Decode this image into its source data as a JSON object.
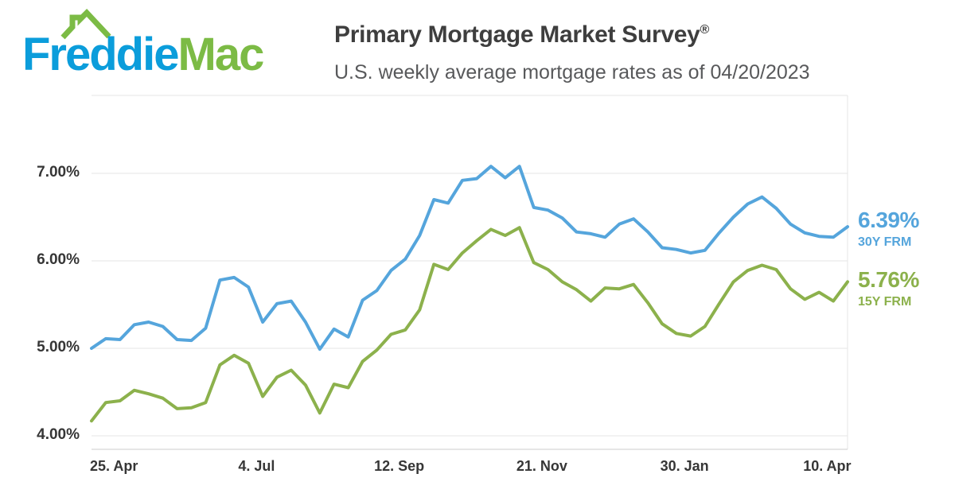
{
  "header": {
    "logo": {
      "word1": "Freddie",
      "word2": "Mac",
      "blue": "#0b9ddb",
      "green": "#7cbb45"
    },
    "title": "Primary Mortgage Market Survey",
    "registered_mark": "®",
    "subtitle": "U.S. weekly average mortgage rates as of 04/20/2023"
  },
  "chart_data": {
    "type": "line",
    "title": "Primary Mortgage Market Survey",
    "subtitle": "U.S. weekly average mortgage rates as of 04/20/2023",
    "x_interval": "weekly",
    "x_start": "2022-04-14",
    "x_end": "2023-04-20",
    "ylim": [
      3.85,
      7.9
    ],
    "grid": "horizontal",
    "legend_position": "right",
    "grid_color": "#e6e6e6",
    "axis_line_color": "#cccccc",
    "y_ticks": [
      {
        "label": "4.00%",
        "value": 4
      },
      {
        "label": "5.00%",
        "value": 5
      },
      {
        "label": "6.00%",
        "value": 6
      },
      {
        "label": "7.00%",
        "value": 7
      }
    ],
    "x_ticks": [
      {
        "label": "25. Apr",
        "day_offset": 11
      },
      {
        "label": "4. Jul",
        "day_offset": 81
      },
      {
        "label": "12. Sep",
        "day_offset": 151
      },
      {
        "label": "21. Nov",
        "day_offset": 221
      },
      {
        "label": "30. Jan",
        "day_offset": 291
      },
      {
        "label": "10. Apr",
        "day_offset": 361
      }
    ],
    "series": [
      {
        "name": "30Y FRM",
        "color": "#55a5dc",
        "end_label": "6.39%",
        "values": [
          5.0,
          5.11,
          5.1,
          5.27,
          5.3,
          5.25,
          5.1,
          5.09,
          5.23,
          5.78,
          5.81,
          5.7,
          5.3,
          5.51,
          5.54,
          5.3,
          4.99,
          5.22,
          5.13,
          5.55,
          5.66,
          5.89,
          6.02,
          6.29,
          6.7,
          6.66,
          6.92,
          6.94,
          7.08,
          6.95,
          7.08,
          6.61,
          6.58,
          6.49,
          6.33,
          6.31,
          6.27,
          6.42,
          6.48,
          6.33,
          6.15,
          6.13,
          6.09,
          6.12,
          6.32,
          6.5,
          6.65,
          6.73,
          6.6,
          6.42,
          6.32,
          6.28,
          6.27,
          6.39
        ]
      },
      {
        "name": "15Y FRM",
        "color": "#8cb14c",
        "end_label": "5.76%",
        "values": [
          4.17,
          4.38,
          4.4,
          4.52,
          4.48,
          4.43,
          4.31,
          4.32,
          4.38,
          4.81,
          4.92,
          4.83,
          4.45,
          4.67,
          4.75,
          4.58,
          4.26,
          4.59,
          4.55,
          4.85,
          4.98,
          5.16,
          5.21,
          5.44,
          5.96,
          5.9,
          6.09,
          6.23,
          6.36,
          6.29,
          6.38,
          5.98,
          5.9,
          5.76,
          5.67,
          5.54,
          5.69,
          5.68,
          5.73,
          5.52,
          5.28,
          5.17,
          5.14,
          5.25,
          5.51,
          5.76,
          5.89,
          5.95,
          5.9,
          5.68,
          5.56,
          5.64,
          5.54,
          5.76
        ]
      }
    ]
  }
}
